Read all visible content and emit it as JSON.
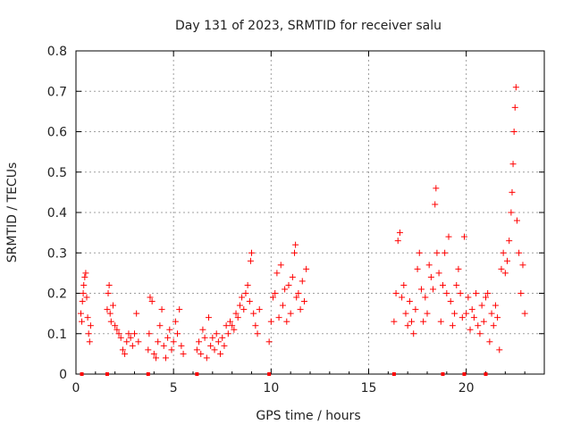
{
  "chart_data": {
    "type": "scatter",
    "title": "Day 131 of 2023, SRMTID for receiver salu",
    "xlabel": "GPS time / hours",
    "ylabel": "SRMTID / TECUs",
    "xlim": [
      0,
      24
    ],
    "ylim": [
      0,
      0.8
    ],
    "xticks": [
      0,
      5,
      10,
      15,
      20
    ],
    "xtick_labels": [
      "0",
      "5",
      "10",
      "15",
      "20"
    ],
    "yticks": [
      0,
      0.1,
      0.2,
      0.3,
      0.4,
      0.5,
      0.6,
      0.7,
      0.8
    ],
    "ytick_labels": [
      "0",
      "0.1",
      "0.2",
      "0.3",
      "0.4",
      "0.5",
      "0.6",
      "0.7",
      "0.8"
    ],
    "grid": true,
    "marker": "+",
    "color": "#ff0000",
    "baseline_points_x": [
      0.3,
      1.6,
      3.7,
      6.2,
      9.9,
      16.3,
      18.8,
      19.9,
      21.0
    ],
    "series": [
      {
        "name": "SRMTID",
        "points": [
          [
            0.25,
            0.15
          ],
          [
            0.3,
            0.13
          ],
          [
            0.33,
            0.18
          ],
          [
            0.37,
            0.2
          ],
          [
            0.4,
            0.22
          ],
          [
            0.45,
            0.24
          ],
          [
            0.5,
            0.25
          ],
          [
            0.55,
            0.19
          ],
          [
            0.6,
            0.14
          ],
          [
            0.65,
            0.1
          ],
          [
            0.7,
            0.08
          ],
          [
            0.75,
            0.12
          ],
          [
            1.6,
            0.16
          ],
          [
            1.65,
            0.2
          ],
          [
            1.7,
            0.22
          ],
          [
            1.75,
            0.15
          ],
          [
            1.8,
            0.13
          ],
          [
            1.9,
            0.17
          ],
          [
            2.0,
            0.12
          ],
          [
            2.1,
            0.11
          ],
          [
            2.2,
            0.1
          ],
          [
            2.3,
            0.09
          ],
          [
            2.4,
            0.06
          ],
          [
            2.5,
            0.05
          ],
          [
            2.6,
            0.08
          ],
          [
            2.7,
            0.1
          ],
          [
            2.8,
            0.09
          ],
          [
            2.9,
            0.07
          ],
          [
            3.0,
            0.1
          ],
          [
            3.1,
            0.15
          ],
          [
            3.2,
            0.08
          ],
          [
            3.7,
            0.06
          ],
          [
            3.75,
            0.1
          ],
          [
            3.8,
            0.19
          ],
          [
            3.9,
            0.18
          ],
          [
            4.0,
            0.05
          ],
          [
            4.1,
            0.04
          ],
          [
            4.2,
            0.08
          ],
          [
            4.3,
            0.12
          ],
          [
            4.4,
            0.16
          ],
          [
            4.5,
            0.07
          ],
          [
            4.6,
            0.04
          ],
          [
            4.7,
            0.09
          ],
          [
            4.8,
            0.11
          ],
          [
            4.9,
            0.06
          ],
          [
            5.0,
            0.08
          ],
          [
            5.1,
            0.13
          ],
          [
            5.2,
            0.1
          ],
          [
            5.3,
            0.16
          ],
          [
            5.4,
            0.07
          ],
          [
            5.5,
            0.05
          ],
          [
            6.2,
            0.06
          ],
          [
            6.3,
            0.08
          ],
          [
            6.4,
            0.05
          ],
          [
            6.5,
            0.11
          ],
          [
            6.6,
            0.09
          ],
          [
            6.7,
            0.04
          ],
          [
            6.8,
            0.14
          ],
          [
            6.9,
            0.07
          ],
          [
            7.0,
            0.09
          ],
          [
            7.1,
            0.06
          ],
          [
            7.2,
            0.1
          ],
          [
            7.3,
            0.08
          ],
          [
            7.4,
            0.05
          ],
          [
            7.5,
            0.09
          ],
          [
            7.6,
            0.07
          ],
          [
            7.7,
            0.12
          ],
          [
            7.8,
            0.1
          ],
          [
            7.9,
            0.13
          ],
          [
            8.0,
            0.12
          ],
          [
            8.1,
            0.11
          ],
          [
            8.2,
            0.15
          ],
          [
            8.3,
            0.14
          ],
          [
            8.4,
            0.17
          ],
          [
            8.5,
            0.19
          ],
          [
            8.6,
            0.16
          ],
          [
            8.7,
            0.2
          ],
          [
            8.8,
            0.22
          ],
          [
            8.9,
            0.18
          ],
          [
            8.95,
            0.28
          ],
          [
            9.0,
            0.3
          ],
          [
            9.1,
            0.15
          ],
          [
            9.2,
            0.12
          ],
          [
            9.3,
            0.1
          ],
          [
            9.4,
            0.16
          ],
          [
            9.9,
            0.08
          ],
          [
            10.0,
            0.13
          ],
          [
            10.1,
            0.19
          ],
          [
            10.2,
            0.2
          ],
          [
            10.3,
            0.25
          ],
          [
            10.4,
            0.14
          ],
          [
            10.5,
            0.27
          ],
          [
            10.6,
            0.17
          ],
          [
            10.7,
            0.21
          ],
          [
            10.8,
            0.13
          ],
          [
            10.9,
            0.22
          ],
          [
            11.0,
            0.15
          ],
          [
            11.1,
            0.24
          ],
          [
            11.2,
            0.3
          ],
          [
            11.25,
            0.32
          ],
          [
            11.3,
            0.19
          ],
          [
            11.4,
            0.2
          ],
          [
            11.5,
            0.16
          ],
          [
            11.6,
            0.23
          ],
          [
            11.7,
            0.18
          ],
          [
            11.8,
            0.26
          ],
          [
            16.3,
            0.13
          ],
          [
            16.4,
            0.2
          ],
          [
            16.5,
            0.33
          ],
          [
            16.6,
            0.35
          ],
          [
            16.7,
            0.19
          ],
          [
            16.8,
            0.22
          ],
          [
            16.9,
            0.15
          ],
          [
            17.0,
            0.12
          ],
          [
            17.1,
            0.18
          ],
          [
            17.2,
            0.13
          ],
          [
            17.3,
            0.1
          ],
          [
            17.4,
            0.16
          ],
          [
            17.5,
            0.26
          ],
          [
            17.6,
            0.3
          ],
          [
            17.7,
            0.21
          ],
          [
            17.8,
            0.13
          ],
          [
            17.9,
            0.19
          ],
          [
            18.0,
            0.15
          ],
          [
            18.1,
            0.27
          ],
          [
            18.2,
            0.24
          ],
          [
            18.3,
            0.21
          ],
          [
            18.4,
            0.42
          ],
          [
            18.45,
            0.46
          ],
          [
            18.5,
            0.3
          ],
          [
            18.6,
            0.25
          ],
          [
            18.7,
            0.13
          ],
          [
            18.8,
            0.22
          ],
          [
            18.9,
            0.3
          ],
          [
            19.0,
            0.2
          ],
          [
            19.1,
            0.34
          ],
          [
            19.2,
            0.18
          ],
          [
            19.3,
            0.12
          ],
          [
            19.4,
            0.15
          ],
          [
            19.5,
            0.22
          ],
          [
            19.6,
            0.26
          ],
          [
            19.7,
            0.2
          ],
          [
            19.8,
            0.14
          ],
          [
            19.9,
            0.34
          ],
          [
            20.0,
            0.15
          ],
          [
            20.1,
            0.19
          ],
          [
            20.2,
            0.11
          ],
          [
            20.3,
            0.16
          ],
          [
            20.4,
            0.14
          ],
          [
            20.5,
            0.2
          ],
          [
            20.6,
            0.12
          ],
          [
            20.7,
            0.1
          ],
          [
            20.8,
            0.17
          ],
          [
            20.9,
            0.13
          ],
          [
            21.0,
            0.19
          ],
          [
            21.1,
            0.2
          ],
          [
            21.2,
            0.08
          ],
          [
            21.3,
            0.15
          ],
          [
            21.4,
            0.12
          ],
          [
            21.5,
            0.17
          ],
          [
            21.6,
            0.14
          ],
          [
            21.7,
            0.06
          ],
          [
            21.8,
            0.26
          ],
          [
            21.9,
            0.3
          ],
          [
            22.0,
            0.25
          ],
          [
            22.1,
            0.28
          ],
          [
            22.2,
            0.33
          ],
          [
            22.3,
            0.4
          ],
          [
            22.35,
            0.45
          ],
          [
            22.4,
            0.52
          ],
          [
            22.45,
            0.6
          ],
          [
            22.5,
            0.66
          ],
          [
            22.55,
            0.71
          ],
          [
            22.6,
            0.38
          ],
          [
            22.7,
            0.3
          ],
          [
            22.8,
            0.2
          ],
          [
            22.9,
            0.27
          ],
          [
            23.0,
            0.15
          ]
        ]
      }
    ]
  }
}
